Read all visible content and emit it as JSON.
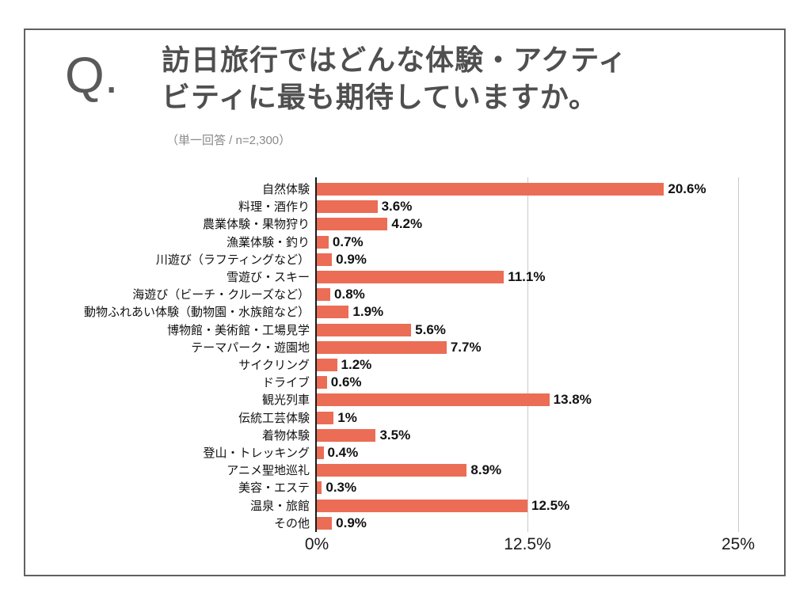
{
  "slide": {
    "q_label": "Q.",
    "title_line1": "訪日旅行ではどんな体験・アクティ",
    "title_line2": "ビティに最も期待していますか。",
    "subtitle": "（単一回答 / n=2,300）"
  },
  "colors": {
    "bar": "#EB6D55",
    "border": "#606060",
    "title": "#4F4F4F",
    "subtitle": "#8A8A8A",
    "axis": "#1a1a1a",
    "gridline": "#C9C9C9"
  },
  "chart_data": {
    "type": "bar",
    "orientation": "horizontal",
    "title": "訪日旅行ではどんな体験・アクティビティに最も期待していますか。",
    "subtitle": "（単一回答 / n=2,300）",
    "categories": [
      "自然体験",
      "料理・酒作り",
      "農業体験・果物狩り",
      "漁業体験・釣り",
      "川遊び（ラフティングなど）",
      "雪遊び・スキー",
      "海遊び（ビーチ・クルーズなど）",
      "動物ふれあい体験（動物園・水族館など）",
      "博物館・美術館・工場見学",
      "テーマパーク・遊園地",
      "サイクリング",
      "ドライブ",
      "観光列車",
      "伝統工芸体験",
      "着物体験",
      "登山・トレッキング",
      "アニメ聖地巡礼",
      "美容・エステ",
      "温泉・旅館",
      "その他"
    ],
    "values": [
      20.6,
      3.6,
      4.2,
      0.7,
      0.9,
      11.1,
      0.8,
      1.9,
      5.6,
      7.7,
      1.2,
      0.6,
      13.8,
      1,
      3.5,
      0.4,
      8.9,
      0.3,
      12.5,
      0.9
    ],
    "value_labels": [
      "20.6%",
      "3.6%",
      "4.2%",
      "0.7%",
      "0.9%",
      "11.1%",
      "0.8%",
      "1.9%",
      "5.6%",
      "7.7%",
      "1.2%",
      "0.6%",
      "13.8%",
      "1%",
      "3.5%",
      "0.4%",
      "8.9%",
      "0.3%",
      "12.5%",
      "0.9%"
    ],
    "xlim": [
      0,
      25
    ],
    "x_ticks": [
      {
        "label": "0%",
        "value": 0
      },
      {
        "label": "12.5%",
        "value": 12.5
      },
      {
        "label": "25%",
        "value": 25
      }
    ],
    "grid": "vertical gridlines at 12.5% and 25%",
    "legend": "none"
  }
}
